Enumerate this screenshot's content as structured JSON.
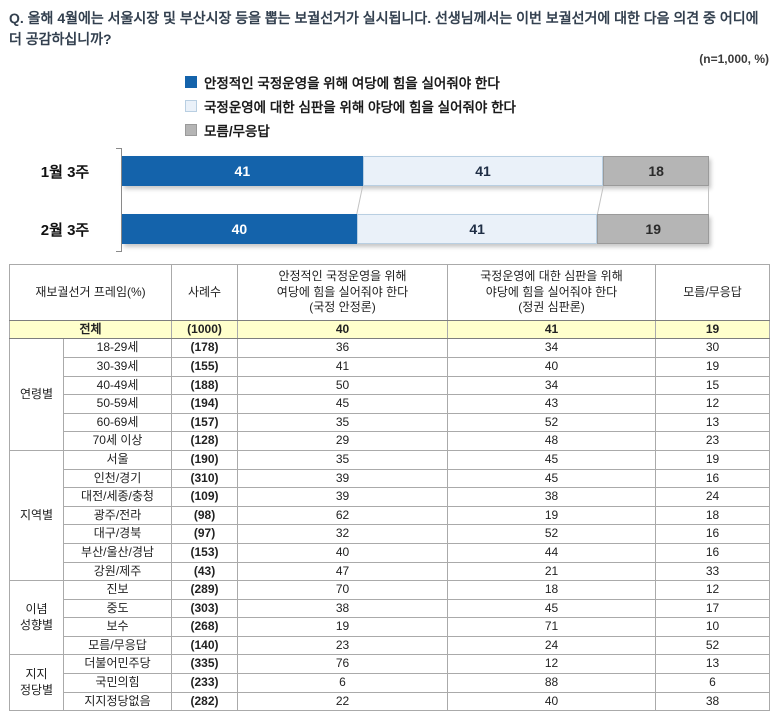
{
  "question": "Q. 올해 4월에는 서울시장 및 부산시장 등을 뽑는 보궐선거가 실시됩니다. 선생님께서는 이번 보궐선거에 대한 다음 의견 중 어디에 더 공감하십니까?",
  "sample_note": "(n=1,000,  %)",
  "chart_data": {
    "type": "bar",
    "stacked": true,
    "orientation": "horizontal",
    "unit": "%",
    "xlim": [
      0,
      100
    ],
    "legend_position": "top",
    "categories": [
      "1월 3주",
      "2월 3주"
    ],
    "series": [
      {
        "name": "안정적인 국정운영을 위해 여당에 힘을 실어줘야 한다",
        "color": "#1463ab",
        "text_color": "#ffffff",
        "values": [
          41,
          40
        ]
      },
      {
        "name": "국정운영에 대한 심판을 위해 야당에 힘을 실어줘야 한다",
        "color": "#eaf1f9",
        "border": "#b9cfe2",
        "text_color": "#1f2e45",
        "values": [
          41,
          41
        ]
      },
      {
        "name": "모름/무응답",
        "color": "#b5b5b5",
        "border": "#9a9a9a",
        "text_color": "#2b2b2b",
        "values": [
          18,
          19
        ]
      }
    ]
  },
  "table": {
    "headers": {
      "frame": "재보궐선거 프레임(%)",
      "cases": "사례수",
      "ruling": "안정적인 국정운영을 위해\n여당에 힘을 실어줘야 한다\n(국정 안정론)",
      "opposition": "국정운영에 대한 심판을 위해\n야당에 힘을 실어줘야 한다\n(정권 심판론)",
      "dk": "모름/무응답"
    },
    "total": {
      "label": "전체",
      "cases": "(1000)",
      "values": [
        "40",
        "41",
        "19"
      ]
    },
    "groups": [
      {
        "name": "연령별",
        "rows": [
          {
            "label": "18-29세",
            "cases": "(178)",
            "values": [
              "36",
              "34",
              "30"
            ]
          },
          {
            "label": "30-39세",
            "cases": "(155)",
            "values": [
              "41",
              "40",
              "19"
            ]
          },
          {
            "label": "40-49세",
            "cases": "(188)",
            "values": [
              "50",
              "34",
              "15"
            ]
          },
          {
            "label": "50-59세",
            "cases": "(194)",
            "values": [
              "45",
              "43",
              "12"
            ]
          },
          {
            "label": "60-69세",
            "cases": "(157)",
            "values": [
              "35",
              "52",
              "13"
            ]
          },
          {
            "label": "70세 이상",
            "cases": "(128)",
            "values": [
              "29",
              "48",
              "23"
            ]
          }
        ]
      },
      {
        "name": "지역별",
        "rows": [
          {
            "label": "서울",
            "cases": "(190)",
            "values": [
              "35",
              "45",
              "19"
            ]
          },
          {
            "label": "인천/경기",
            "cases": "(310)",
            "values": [
              "39",
              "45",
              "16"
            ]
          },
          {
            "label": "대전/세종/충청",
            "cases": "(109)",
            "values": [
              "39",
              "38",
              "24"
            ]
          },
          {
            "label": "광주/전라",
            "cases": "(98)",
            "values": [
              "62",
              "19",
              "18"
            ]
          },
          {
            "label": "대구/경북",
            "cases": "(97)",
            "values": [
              "32",
              "52",
              "16"
            ]
          },
          {
            "label": "부산/울산/경남",
            "cases": "(153)",
            "values": [
              "40",
              "44",
              "16"
            ]
          },
          {
            "label": "강원/제주",
            "cases": "(43)",
            "values": [
              "47",
              "21",
              "33"
            ]
          }
        ]
      },
      {
        "name": "이념\n성향별",
        "rows": [
          {
            "label": "진보",
            "cases": "(289)",
            "values": [
              "70",
              "18",
              "12"
            ]
          },
          {
            "label": "중도",
            "cases": "(303)",
            "values": [
              "38",
              "45",
              "17"
            ]
          },
          {
            "label": "보수",
            "cases": "(268)",
            "values": [
              "19",
              "71",
              "10"
            ]
          },
          {
            "label": "모름/무응답",
            "cases": "(140)",
            "values": [
              "23",
              "24",
              "52"
            ]
          }
        ]
      },
      {
        "name": "지지\n정당별",
        "rows": [
          {
            "label": "더불어민주당",
            "cases": "(335)",
            "values": [
              "76",
              "12",
              "13"
            ]
          },
          {
            "label": "국민의힘",
            "cases": "(233)",
            "values": [
              "6",
              "88",
              "6"
            ]
          },
          {
            "label": "지지정당없음",
            "cases": "(282)",
            "values": [
              "22",
              "40",
              "38"
            ]
          }
        ]
      }
    ]
  },
  "colors": {
    "highlight_row": "#ffffcc",
    "ruling_blue": "#1463ab",
    "opposition_lightblue": "#eaf1f9",
    "dontknow_gray": "#b5b5b5",
    "question_text": "#33404f"
  }
}
